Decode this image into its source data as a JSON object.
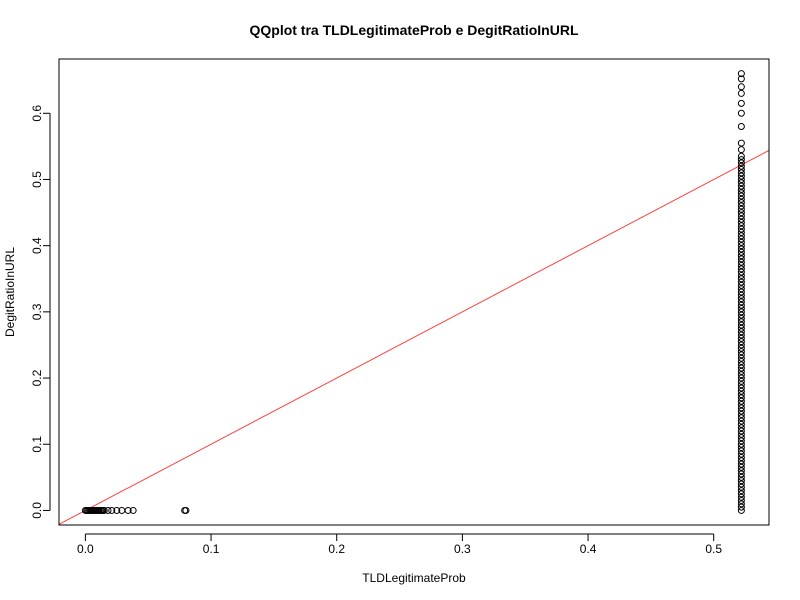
{
  "chart_data": {
    "type": "scatter",
    "title": "QQplot tra TLDLegitimateProb e DegitRatioInURL",
    "xlabel": "TLDLegitimateProb",
    "ylabel": "DegitRatioInURL",
    "xlim": [
      -0.021,
      0.544
    ],
    "ylim": [
      -0.022,
      0.682
    ],
    "xticks": [
      0.0,
      0.1,
      0.2,
      0.3,
      0.4,
      0.5
    ],
    "xtick_labels": [
      "0.0",
      "0.1",
      "0.2",
      "0.3",
      "0.4",
      "0.5"
    ],
    "yticks": [
      0.0,
      0.1,
      0.2,
      0.3,
      0.4,
      0.5,
      0.6
    ],
    "ytick_labels": [
      "0.0",
      "0.1",
      "0.2",
      "0.3",
      "0.4",
      "0.5",
      "0.6"
    ],
    "grid": false,
    "point_color": "#000000",
    "line_color": "#ff4040",
    "reference_line": {
      "intercept": 0.0,
      "slope": 1.0
    },
    "low_cluster": {
      "x": [
        0.0,
        0.001,
        0.002,
        0.003,
        0.004,
        0.005,
        0.006,
        0.007,
        0.008,
        0.009,
        0.01,
        0.011,
        0.012,
        0.013,
        0.014,
        0.015,
        0.018,
        0.021,
        0.025,
        0.029,
        0.034,
        0.038,
        0.079,
        0.08
      ],
      "y": 0.0
    },
    "high_cluster": {
      "x": 0.522,
      "y": [
        0.0,
        0.005,
        0.01,
        0.015,
        0.02,
        0.025,
        0.03,
        0.035,
        0.04,
        0.045,
        0.05,
        0.055,
        0.06,
        0.065,
        0.07,
        0.075,
        0.08,
        0.085,
        0.09,
        0.095,
        0.1,
        0.105,
        0.11,
        0.115,
        0.12,
        0.125,
        0.13,
        0.135,
        0.14,
        0.145,
        0.15,
        0.155,
        0.16,
        0.165,
        0.17,
        0.175,
        0.18,
        0.185,
        0.19,
        0.195,
        0.2,
        0.205,
        0.21,
        0.215,
        0.22,
        0.225,
        0.23,
        0.235,
        0.24,
        0.245,
        0.25,
        0.255,
        0.26,
        0.265,
        0.27,
        0.275,
        0.28,
        0.285,
        0.29,
        0.295,
        0.3,
        0.305,
        0.31,
        0.315,
        0.32,
        0.325,
        0.33,
        0.335,
        0.34,
        0.345,
        0.35,
        0.355,
        0.36,
        0.365,
        0.37,
        0.375,
        0.38,
        0.385,
        0.39,
        0.395,
        0.4,
        0.405,
        0.41,
        0.415,
        0.42,
        0.425,
        0.43,
        0.435,
        0.44,
        0.445,
        0.45,
        0.455,
        0.46,
        0.465,
        0.47,
        0.475,
        0.48,
        0.485,
        0.49,
        0.495,
        0.5,
        0.505,
        0.51,
        0.515,
        0.52,
        0.525,
        0.53,
        0.535,
        0.545,
        0.555,
        0.58,
        0.6,
        0.615,
        0.63,
        0.64,
        0.652,
        0.66
      ]
    }
  }
}
